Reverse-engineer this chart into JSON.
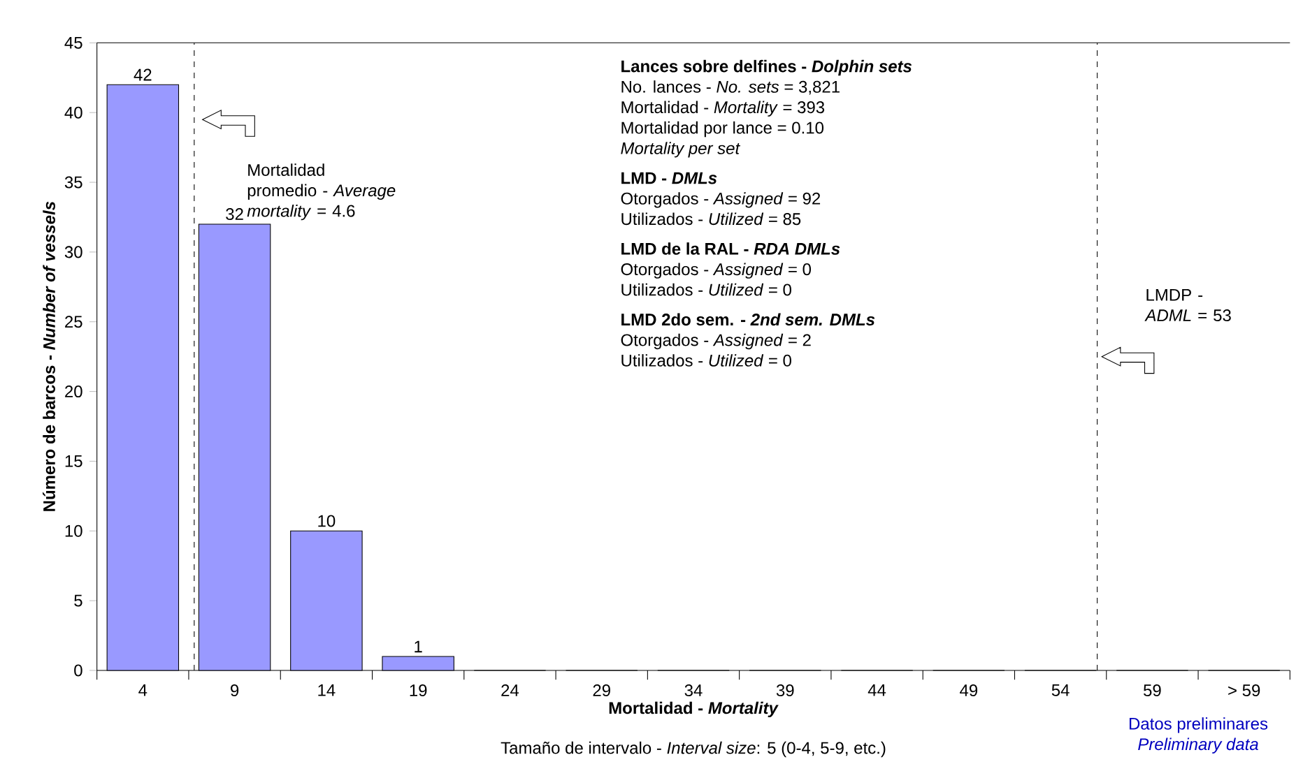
{
  "chart_data": {
    "type": "bar",
    "categories": [
      "4",
      "9",
      "14",
      "19",
      "24",
      "29",
      "34",
      "39",
      "44",
      "49",
      "54",
      "59",
      "> 59"
    ],
    "values": [
      42,
      32,
      10,
      1,
      0,
      0,
      0,
      0,
      0,
      0,
      0,
      0,
      0
    ],
    "value_labels": [
      "42",
      "32",
      "10",
      "1",
      null,
      null,
      null,
      null,
      null,
      null,
      null,
      null,
      null
    ],
    "color": "#9999ff",
    "xlabel": "Mortalidad - *Mortality*",
    "ylabel": "Número de barcos - *Number of vessels*",
    "ylim": [
      0,
      45
    ],
    "yticks": [
      0,
      5,
      10,
      15,
      20,
      25,
      30,
      35,
      40,
      45
    ],
    "annotations": [
      "Lances sobre delfines - *Dolphin sets*",
      "No. lances - *No. sets* = 3,821",
      "Mortalidad - *Mortality* = 393",
      "Mortalidad por lance = 0.10",
      "*Mortality per set*",
      "LMD - *DMLs*",
      "Otorgados - *Assigned* = 92",
      "Utilizados - *Utilized* = 85",
      "LMD de la RAL - *RDA DMLs*",
      "Otorgados - *Assigned* = 0",
      "Utilizados - *Utilized* = 0",
      "LMD 2do sem. - *2nd sem. DMLs*",
      "Otorgados - *Assigned* = 2",
      "Utilizados - *Utilized* = 0",
      "Tamaño de intervalo - *Interval size*: 5 (0-4, 5-9, etc.)",
      "Datos preliminares",
      "*Preliminary data*",
      "Mortalidad promedio - *Average mortality* = 4.6",
      "LMDP - *ADML* = 53"
    ],
    "grid": false
  }
}
